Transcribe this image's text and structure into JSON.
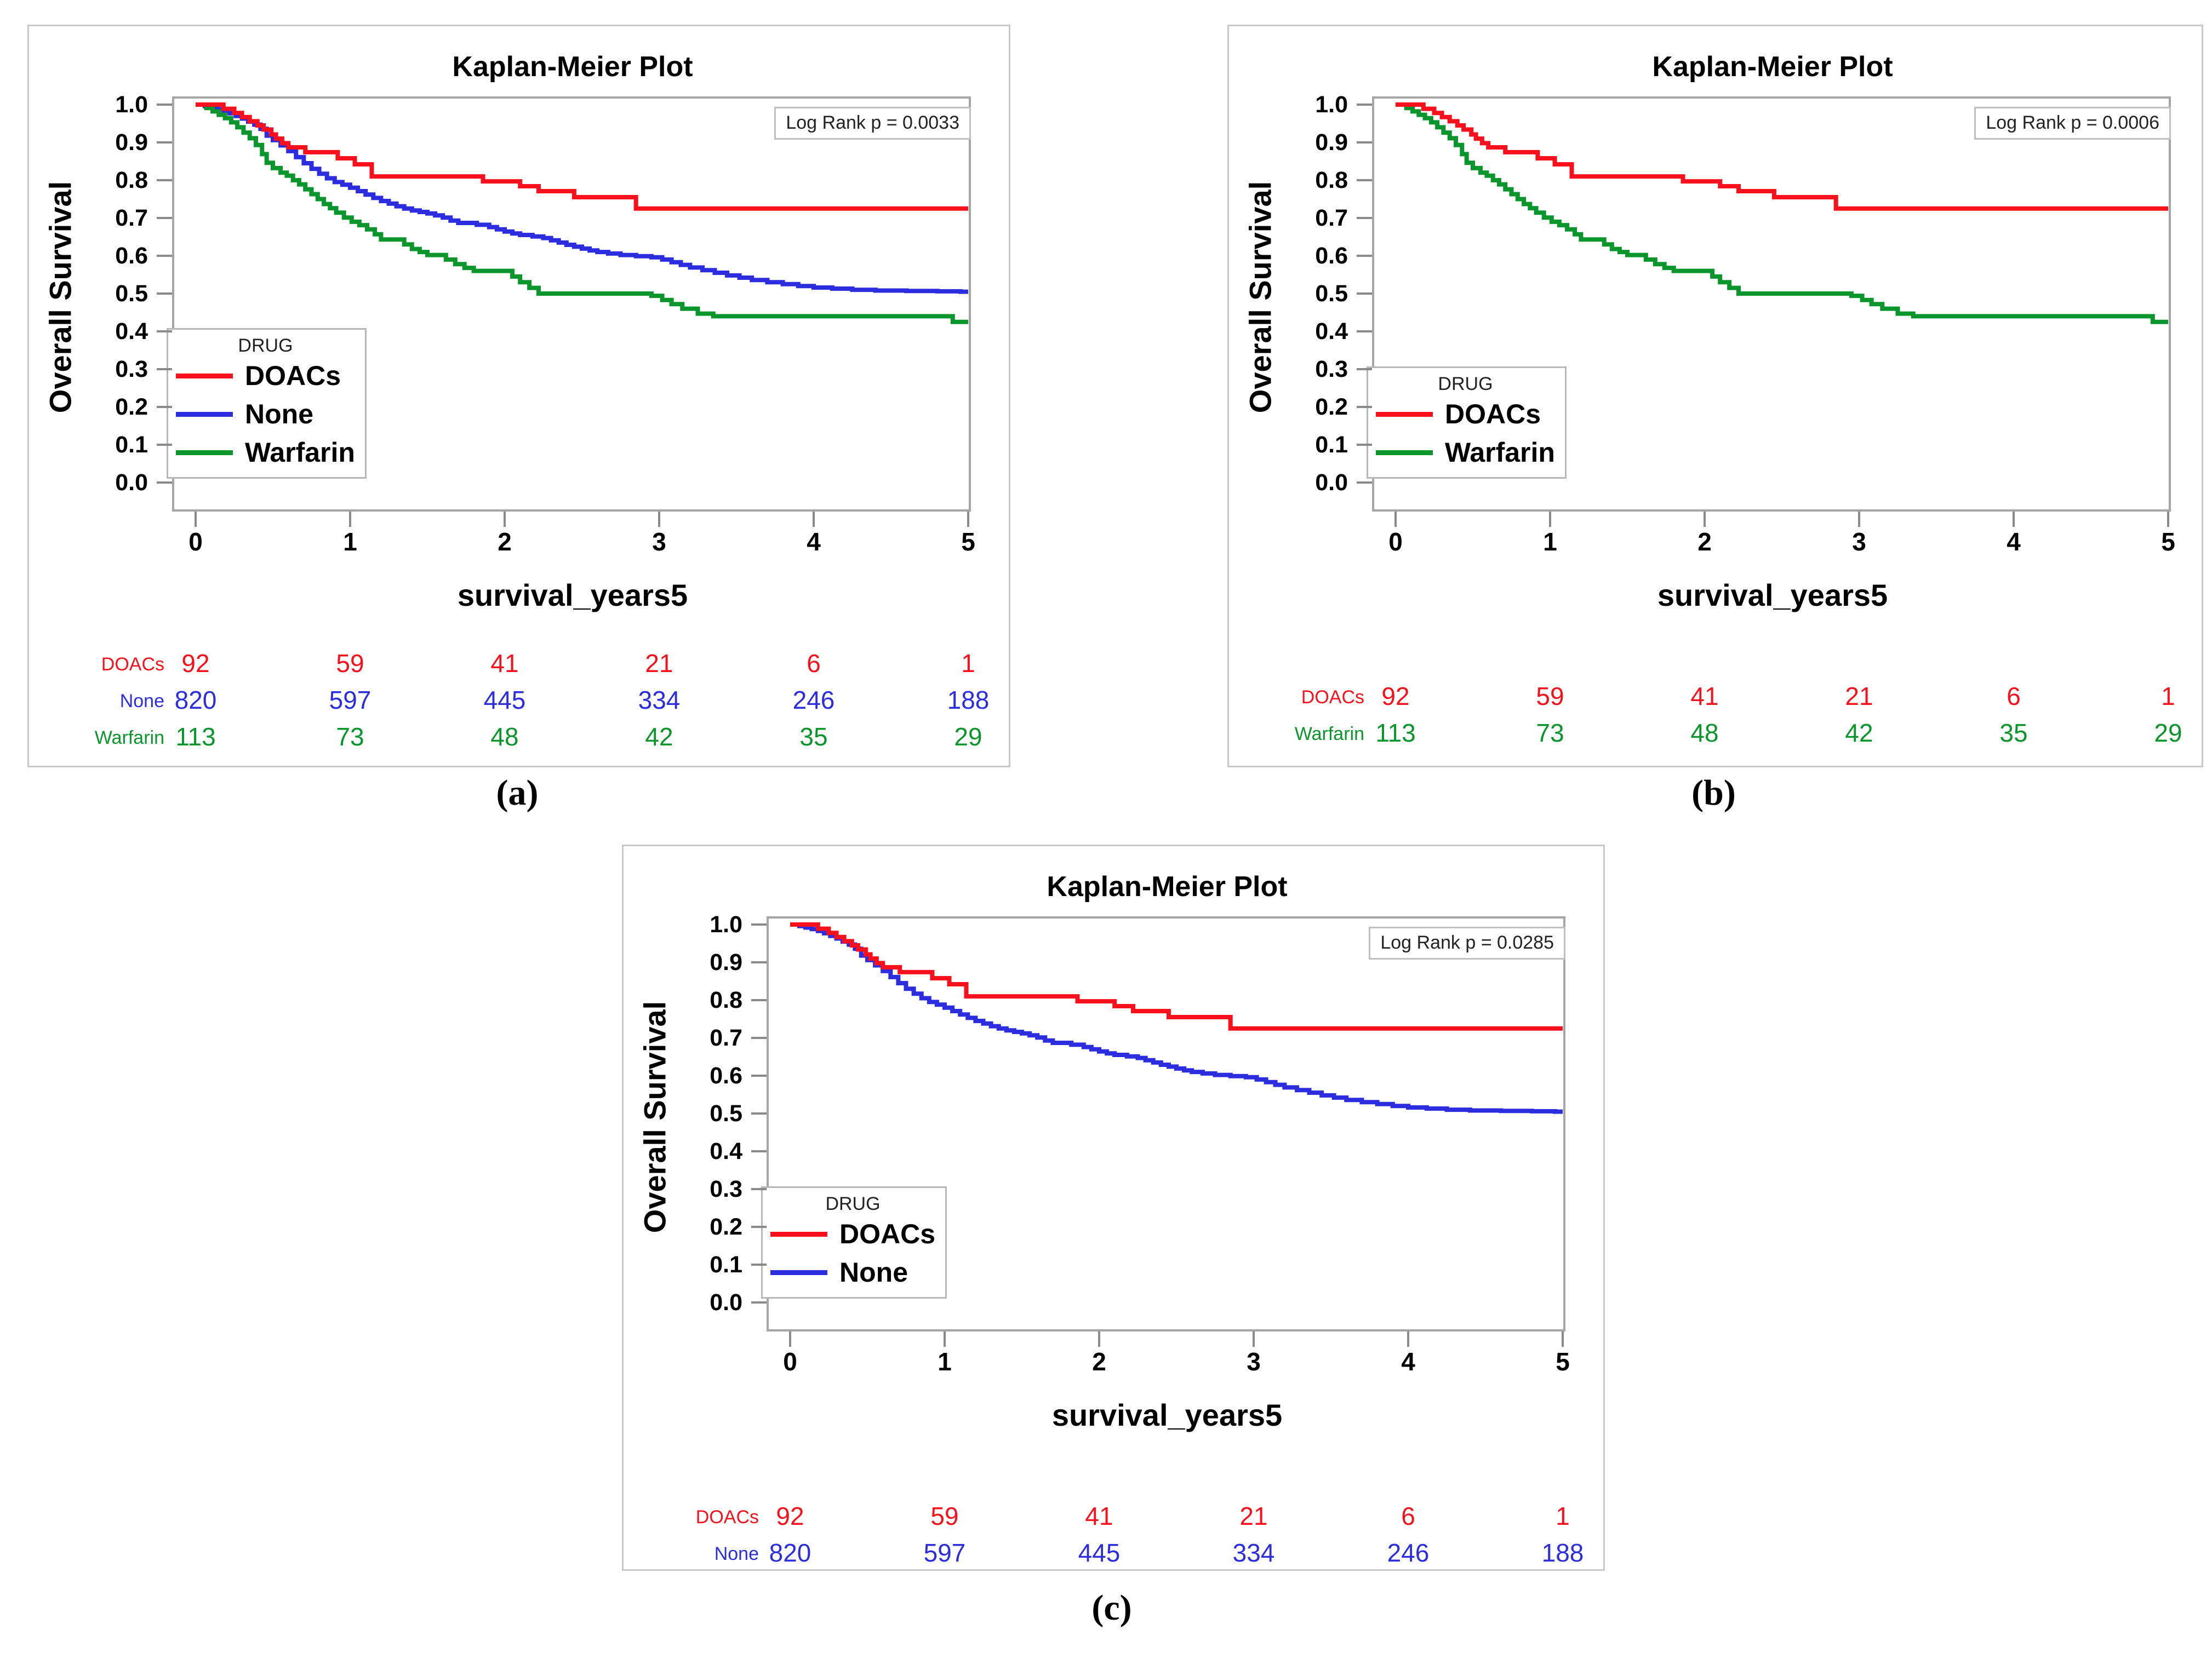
{
  "figure_captions": [
    "(a)",
    "(b)",
    "(c)"
  ],
  "colors": {
    "doacs_red": "#f8101d",
    "none_blue": "#2d2de0",
    "warfarin_green": "#0a962d",
    "plot_frame_gray": "#a6a6a6",
    "tick_gray": "#8a8a8a"
  },
  "curves": {
    "DOACs": [
      [
        0,
        1.0
      ],
      [
        0.18,
        0.989
      ],
      [
        0.25,
        0.978
      ],
      [
        0.3,
        0.967
      ],
      [
        0.35,
        0.956
      ],
      [
        0.4,
        0.945
      ],
      [
        0.44,
        0.934
      ],
      [
        0.49,
        0.921
      ],
      [
        0.52,
        0.91
      ],
      [
        0.56,
        0.898
      ],
      [
        0.6,
        0.887
      ],
      [
        0.71,
        0.874
      ],
      [
        0.92,
        0.858
      ],
      [
        1.03,
        0.842
      ],
      [
        1.14,
        0.81
      ],
      [
        1.86,
        0.797
      ],
      [
        2.1,
        0.784
      ],
      [
        2.22,
        0.771
      ],
      [
        2.45,
        0.755
      ],
      [
        2.85,
        0.725
      ],
      [
        5.0,
        0.725
      ]
    ],
    "None": [
      [
        0,
        1.0
      ],
      [
        0.06,
        0.996
      ],
      [
        0.1,
        0.992
      ],
      [
        0.14,
        0.988
      ],
      [
        0.18,
        0.983
      ],
      [
        0.22,
        0.977
      ],
      [
        0.26,
        0.97
      ],
      [
        0.3,
        0.963
      ],
      [
        0.34,
        0.955
      ],
      [
        0.38,
        0.947
      ],
      [
        0.42,
        0.936
      ],
      [
        0.46,
        0.918
      ],
      [
        0.5,
        0.906
      ],
      [
        0.55,
        0.892
      ],
      [
        0.6,
        0.877
      ],
      [
        0.65,
        0.861
      ],
      [
        0.7,
        0.845
      ],
      [
        0.75,
        0.83
      ],
      [
        0.8,
        0.817
      ],
      [
        0.85,
        0.805
      ],
      [
        0.9,
        0.795
      ],
      [
        0.95,
        0.788
      ],
      [
        1.0,
        0.78
      ],
      [
        1.05,
        0.771
      ],
      [
        1.1,
        0.762
      ],
      [
        1.15,
        0.753
      ],
      [
        1.2,
        0.745
      ],
      [
        1.25,
        0.738
      ],
      [
        1.3,
        0.731
      ],
      [
        1.35,
        0.725
      ],
      [
        1.4,
        0.72
      ],
      [
        1.45,
        0.716
      ],
      [
        1.5,
        0.712
      ],
      [
        1.55,
        0.707
      ],
      [
        1.6,
        0.701
      ],
      [
        1.65,
        0.693
      ],
      [
        1.7,
        0.687
      ],
      [
        1.82,
        0.682
      ],
      [
        1.9,
        0.676
      ],
      [
        1.95,
        0.67
      ],
      [
        2.0,
        0.664
      ],
      [
        2.05,
        0.659
      ],
      [
        2.1,
        0.655
      ],
      [
        2.18,
        0.651
      ],
      [
        2.25,
        0.647
      ],
      [
        2.3,
        0.641
      ],
      [
        2.35,
        0.635
      ],
      [
        2.4,
        0.629
      ],
      [
        2.45,
        0.624
      ],
      [
        2.5,
        0.619
      ],
      [
        2.55,
        0.614
      ],
      [
        2.6,
        0.61
      ],
      [
        2.67,
        0.606
      ],
      [
        2.75,
        0.602
      ],
      [
        2.85,
        0.599
      ],
      [
        2.95,
        0.596
      ],
      [
        3.02,
        0.59
      ],
      [
        3.08,
        0.583
      ],
      [
        3.14,
        0.576
      ],
      [
        3.2,
        0.569
      ],
      [
        3.28,
        0.562
      ],
      [
        3.36,
        0.555
      ],
      [
        3.44,
        0.548
      ],
      [
        3.52,
        0.542
      ],
      [
        3.6,
        0.536
      ],
      [
        3.7,
        0.53
      ],
      [
        3.8,
        0.525
      ],
      [
        3.9,
        0.52
      ],
      [
        4.0,
        0.516
      ],
      [
        4.12,
        0.513
      ],
      [
        4.25,
        0.51
      ],
      [
        4.4,
        0.508
      ],
      [
        4.6,
        0.507
      ],
      [
        4.8,
        0.506
      ],
      [
        4.95,
        0.505
      ],
      [
        5,
        0.505
      ]
    ],
    "Warfarin": [
      [
        0,
        1.0
      ],
      [
        0.07,
        0.991
      ],
      [
        0.11,
        0.982
      ],
      [
        0.15,
        0.973
      ],
      [
        0.19,
        0.964
      ],
      [
        0.23,
        0.953
      ],
      [
        0.27,
        0.94
      ],
      [
        0.31,
        0.926
      ],
      [
        0.35,
        0.911
      ],
      [
        0.39,
        0.893
      ],
      [
        0.43,
        0.869
      ],
      [
        0.46,
        0.846
      ],
      [
        0.5,
        0.832
      ],
      [
        0.55,
        0.82
      ],
      [
        0.59,
        0.812
      ],
      [
        0.63,
        0.8
      ],
      [
        0.67,
        0.789
      ],
      [
        0.71,
        0.776
      ],
      [
        0.75,
        0.763
      ],
      [
        0.79,
        0.75
      ],
      [
        0.83,
        0.737
      ],
      [
        0.87,
        0.726
      ],
      [
        0.91,
        0.714
      ],
      [
        0.96,
        0.701
      ],
      [
        1.01,
        0.69
      ],
      [
        1.06,
        0.681
      ],
      [
        1.11,
        0.67
      ],
      [
        1.16,
        0.657
      ],
      [
        1.2,
        0.643
      ],
      [
        1.35,
        0.63
      ],
      [
        1.4,
        0.618
      ],
      [
        1.45,
        0.61
      ],
      [
        1.5,
        0.602
      ],
      [
        1.62,
        0.59
      ],
      [
        1.68,
        0.578
      ],
      [
        1.74,
        0.568
      ],
      [
        1.8,
        0.56
      ],
      [
        2.05,
        0.545
      ],
      [
        2.1,
        0.53
      ],
      [
        2.16,
        0.515
      ],
      [
        2.22,
        0.5
      ],
      [
        2.95,
        0.494
      ],
      [
        3.02,
        0.483
      ],
      [
        3.08,
        0.472
      ],
      [
        3.15,
        0.46
      ],
      [
        3.25,
        0.447
      ],
      [
        3.35,
        0.44
      ],
      [
        4.9,
        0.425
      ],
      [
        5,
        0.425
      ]
    ]
  },
  "chart_data": [
    {
      "panel": "a",
      "type": "line",
      "subtype": "kaplan-meier-step",
      "title": "Kaplan-Meier Plot",
      "annotation": "Log Rank p = 0.0033",
      "xlabel": "survival_years5",
      "ylabel": "Overall Survival",
      "xlim": [
        0,
        5
      ],
      "ylim": [
        0.0,
        1.0
      ],
      "xticks": [
        0,
        1,
        2,
        3,
        4,
        5
      ],
      "xtick_labels": [
        "0",
        "1",
        "2",
        "3",
        "4",
        "5"
      ],
      "yticks": [
        0.0,
        0.1,
        0.2,
        0.3,
        0.4,
        0.5,
        0.6,
        0.7,
        0.8,
        0.9,
        1.0
      ],
      "ytick_labels": [
        "0.0",
        "0.1",
        "0.2",
        "0.3",
        "0.4",
        "0.5",
        "0.6",
        "0.7",
        "0.8",
        "0.9",
        "1.0"
      ],
      "grid": false,
      "legend_title": "DRUG",
      "legend_position": "lower-left",
      "series": [
        {
          "name": "DOACs",
          "color": "#f8101d",
          "curve": "DOACs"
        },
        {
          "name": "None",
          "color": "#2d2de0",
          "curve": "None"
        },
        {
          "name": "Warfarin",
          "color": "#0a962d",
          "curve": "Warfarin"
        }
      ],
      "draw_order": [
        "None",
        "Warfarin",
        "DOACs"
      ],
      "at_risk": {
        "times": [
          0,
          1,
          2,
          3,
          4,
          5
        ],
        "rows": [
          {
            "name": "DOACs",
            "color": "#f8101d",
            "counts": [
              92,
              59,
              41,
              21,
              6,
              1
            ]
          },
          {
            "name": "None",
            "color": "#2d2de0",
            "counts": [
              820,
              597,
              445,
              334,
              246,
              188
            ]
          },
          {
            "name": "Warfarin",
            "color": "#0a962d",
            "counts": [
              113,
              73,
              48,
              42,
              35,
              29
            ]
          }
        ]
      }
    },
    {
      "panel": "b",
      "type": "line",
      "subtype": "kaplan-meier-step",
      "title": "Kaplan-Meier Plot",
      "annotation": "Log Rank p = 0.0006",
      "xlabel": "survival_years5",
      "ylabel": "Overall Survival",
      "xlim": [
        0,
        5
      ],
      "ylim": [
        0.0,
        1.0
      ],
      "xticks": [
        0,
        1,
        2,
        3,
        4,
        5
      ],
      "xtick_labels": [
        "0",
        "1",
        "2",
        "3",
        "4",
        "5"
      ],
      "yticks": [
        0.0,
        0.1,
        0.2,
        0.3,
        0.4,
        0.5,
        0.6,
        0.7,
        0.8,
        0.9,
        1.0
      ],
      "ytick_labels": [
        "0.0",
        "0.1",
        "0.2",
        "0.3",
        "0.4",
        "0.5",
        "0.6",
        "0.7",
        "0.8",
        "0.9",
        "1.0"
      ],
      "grid": false,
      "legend_title": "DRUG",
      "legend_position": "lower-left",
      "series": [
        {
          "name": "DOACs",
          "color": "#f8101d",
          "curve": "DOACs"
        },
        {
          "name": "Warfarin",
          "color": "#0a962d",
          "curve": "Warfarin"
        }
      ],
      "draw_order": [
        "Warfarin",
        "DOACs"
      ],
      "at_risk": {
        "times": [
          0,
          1,
          2,
          3,
          4,
          5
        ],
        "rows": [
          {
            "name": "DOACs",
            "color": "#f8101d",
            "counts": [
              92,
              59,
              41,
              21,
              6,
              1
            ]
          },
          {
            "name": "Warfarin",
            "color": "#0a962d",
            "counts": [
              113,
              73,
              48,
              42,
              35,
              29
            ]
          }
        ]
      }
    },
    {
      "panel": "c",
      "type": "line",
      "subtype": "kaplan-meier-step",
      "title": "Kaplan-Meier Plot",
      "annotation": "Log Rank p = 0.0285",
      "xlabel": "survival_years5",
      "ylabel": "Overall Survival",
      "xlim": [
        0,
        5
      ],
      "ylim": [
        0.0,
        1.0
      ],
      "xticks": [
        0,
        1,
        2,
        3,
        4,
        5
      ],
      "xtick_labels": [
        "0",
        "1",
        "2",
        "3",
        "4",
        "5"
      ],
      "yticks": [
        0.0,
        0.1,
        0.2,
        0.3,
        0.4,
        0.5,
        0.6,
        0.7,
        0.8,
        0.9,
        1.0
      ],
      "ytick_labels": [
        "0.0",
        "0.1",
        "0.2",
        "0.3",
        "0.4",
        "0.5",
        "0.6",
        "0.7",
        "0.8",
        "0.9",
        "1.0"
      ],
      "grid": false,
      "legend_title": "DRUG",
      "legend_position": "lower-left",
      "series": [
        {
          "name": "DOACs",
          "color": "#f8101d",
          "curve": "DOACs"
        },
        {
          "name": "None",
          "color": "#2d2de0",
          "curve": "None"
        }
      ],
      "draw_order": [
        "None",
        "DOACs"
      ],
      "at_risk": {
        "times": [
          0,
          1,
          2,
          3,
          4,
          5
        ],
        "rows": [
          {
            "name": "DOACs",
            "color": "#f8101d",
            "counts": [
              92,
              59,
              41,
              21,
              6,
              1
            ]
          },
          {
            "name": "None",
            "color": "#2d2de0",
            "counts": [
              820,
              597,
              445,
              334,
              246,
              188
            ]
          }
        ]
      }
    }
  ]
}
